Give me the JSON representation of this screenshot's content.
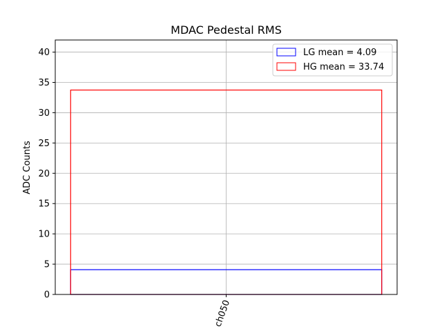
{
  "chart_data": {
    "type": "bar",
    "title": "MDAC Pedestal RMS",
    "xlabel": "",
    "ylabel": "ADC Counts",
    "categories": [
      "ch050"
    ],
    "x_tick_rotation": "rotated ~70° (bottom-left to top-right)",
    "series": [
      {
        "name": "LG",
        "values": [
          4.09
        ],
        "color": "#0000ff",
        "fill": "none"
      },
      {
        "name": "HG",
        "values": [
          33.74
        ],
        "color": "#ff0000",
        "fill": "none"
      }
    ],
    "ylim": [
      0,
      42
    ],
    "yticks": [
      0,
      5,
      10,
      15,
      20,
      25,
      30,
      35,
      40
    ],
    "grid": true,
    "legend": {
      "placement": "top-right",
      "entries": [
        "LG mean = 4.09",
        "HG mean = 33.74"
      ]
    }
  }
}
